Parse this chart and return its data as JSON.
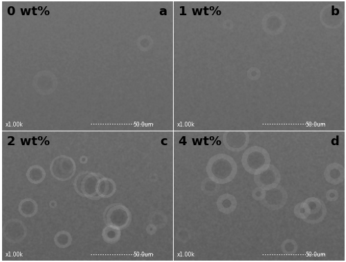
{
  "panels": [
    {
      "label": "0 wt%",
      "sublabel": "a",
      "row": 0,
      "col": 0,
      "base_gray": 0.42,
      "noise_intensity": 0.018,
      "smooth_sigma": 3.0,
      "noise_seed": 42,
      "num_features": 2,
      "feature_intensity": 0.03
    },
    {
      "label": "1 wt%",
      "sublabel": "b",
      "row": 0,
      "col": 1,
      "base_gray": 0.42,
      "noise_intensity": 0.02,
      "smooth_sigma": 2.5,
      "noise_seed": 7,
      "num_features": 4,
      "feature_intensity": 0.04
    },
    {
      "label": "2 wt%",
      "sublabel": "c",
      "row": 1,
      "col": 0,
      "base_gray": 0.4,
      "noise_intensity": 0.025,
      "smooth_sigma": 2.0,
      "noise_seed": 13,
      "num_features": 18,
      "feature_intensity": 0.07
    },
    {
      "label": "4 wt%",
      "sublabel": "d",
      "row": 1,
      "col": 1,
      "base_gray": 0.4,
      "noise_intensity": 0.025,
      "smooth_sigma": 2.0,
      "noise_seed": 99,
      "num_features": 15,
      "feature_intensity": 0.065
    }
  ],
  "scale_bar_text": "50.0um",
  "magnification_text": "x1.00k",
  "border_color": "#ffffff",
  "label_color": "#000000",
  "sublabel_color": "#000000",
  "label_fontsize": 13,
  "sublabel_fontsize": 13,
  "scale_fontsize": 5.5,
  "fig_bg": "#ffffff",
  "wspace": 0.008,
  "hspace": 0.008
}
